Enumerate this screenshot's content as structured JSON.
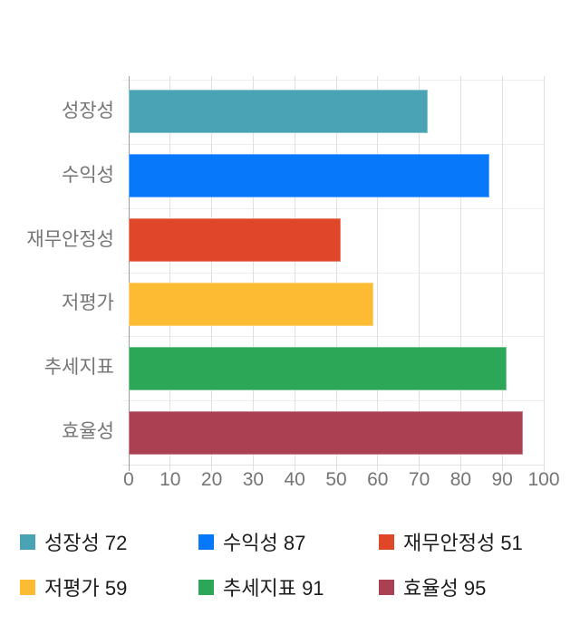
{
  "chart_data": {
    "type": "bar",
    "orientation": "horizontal",
    "title": "",
    "categories": [
      "성장성",
      "수익성",
      "재무안정성",
      "저평가",
      "추세지표",
      "효율성"
    ],
    "values": [
      72,
      87,
      51,
      59,
      91,
      95
    ],
    "colors": [
      "#4aa3b5",
      "#0778fa",
      "#e04628",
      "#fdbb33",
      "#2ba757",
      "#aa4052"
    ],
    "xlim": [
      0,
      100
    ],
    "x_ticks": [
      0,
      10,
      20,
      30,
      40,
      50,
      60,
      70,
      80,
      90,
      100
    ],
    "grid": true,
    "axis_text_color": "#757575",
    "legend_text_color": "#1c1c1c",
    "legend": {
      "position": "bottom",
      "items": [
        {
          "label": "성장성 72",
          "color": "#4aa3b5"
        },
        {
          "label": "수익성 87",
          "color": "#0778fa"
        },
        {
          "label": "재무안정성 51",
          "color": "#e04628"
        },
        {
          "label": "저평가 59",
          "color": "#fdbb33"
        },
        {
          "label": "추세지표 91",
          "color": "#2ba757"
        },
        {
          "label": "효율성 95",
          "color": "#aa4052"
        }
      ]
    }
  }
}
